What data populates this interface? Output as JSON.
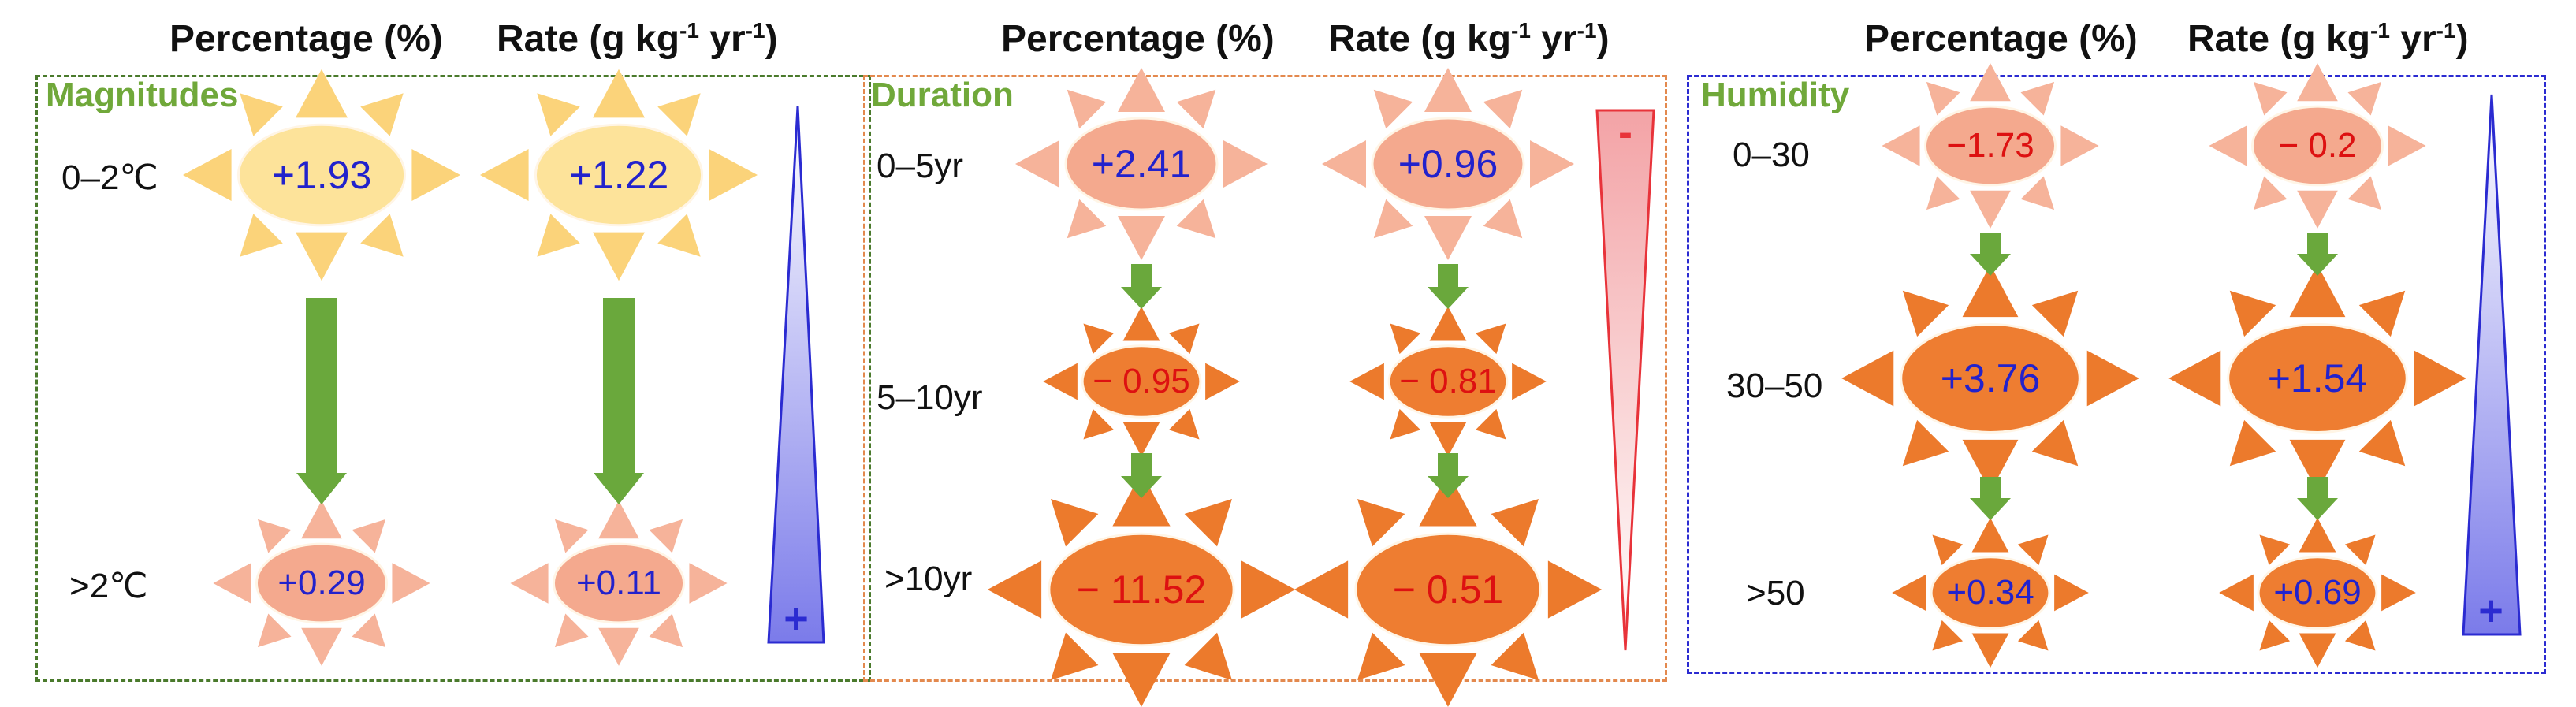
{
  "headers": {
    "percentage": "Percentage (%)",
    "rate_prefix": "Rate (g kg",
    "rate_exp": "-1",
    "rate_mid": " yr",
    "rate_exp2": "-1",
    "rate_suffix": ")"
  },
  "panels": [
    {
      "title": "Magnitudes",
      "border_color": "#4a7a2c",
      "rows": [
        {
          "label": "0–2℃",
          "percentage": "+1.93",
          "rate": "+1.22"
        },
        {
          "label": ">2℃",
          "percentage": "+0.29",
          "rate": "+0.11"
        }
      ],
      "trend_sign": "+",
      "trend_color": "#2b2bd1"
    },
    {
      "title": "Duration",
      "border_color": "#e3894e",
      "rows": [
        {
          "label": "0–5yr",
          "percentage": "+2.41",
          "rate": "+0.96"
        },
        {
          "label": "5–10yr",
          "percentage": "− 0.95",
          "rate": "− 0.81"
        },
        {
          "label": ">10yr",
          "percentage": "− 11.52",
          "rate": "− 0.51"
        }
      ],
      "trend_sign": "-",
      "trend_color": "#e8333a"
    },
    {
      "title": "Humidity",
      "border_color": "#2b2bd1",
      "rows": [
        {
          "label": "0–30",
          "percentage": "−1.73",
          "rate": "− 0.2"
        },
        {
          "label": "30–50",
          "percentage": "+3.76",
          "rate": "+1.54"
        },
        {
          "label": ">50",
          "percentage": "+0.34",
          "rate": "+0.69"
        }
      ],
      "trend_sign": "+",
      "trend_color": "#2b2bd1"
    }
  ],
  "colors": {
    "positive_text": "#2222cc",
    "negative_text": "#dd1111",
    "arrow_green": "#6aa83c",
    "sun_yellow_rays": "#fbd37a",
    "sun_yellow_core": "#fde39a",
    "sun_peach_rays": "#f6b39a",
    "sun_peach_core": "#f4a98e",
    "sun_orange_rays": "#ec7a2c",
    "sun_orange_core": "#ee7d31"
  }
}
